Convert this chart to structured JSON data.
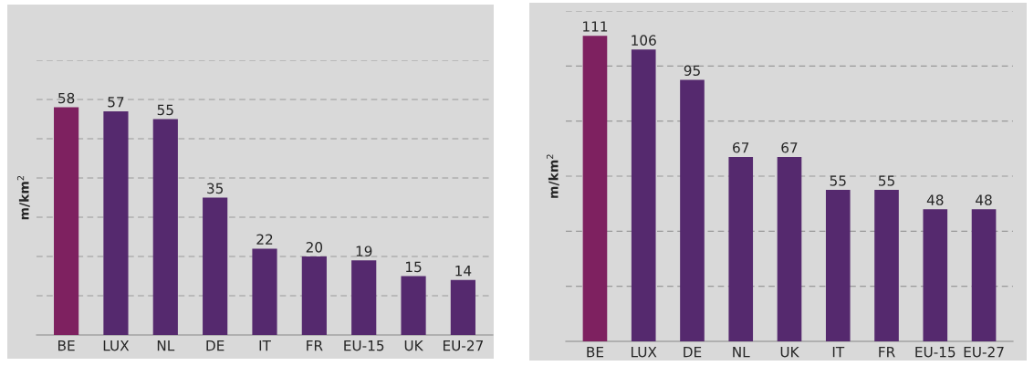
{
  "chart_data": [
    {
      "type": "bar",
      "ylabel": "m/km$^{2}$",
      "categories": [
        "BE",
        "LUX",
        "NL",
        "DE",
        "IT",
        "FR",
        "EU-15",
        "UK",
        "EU-27"
      ],
      "values": [
        58,
        57,
        55,
        35,
        22,
        20,
        19,
        15,
        14
      ],
      "colors": [
        "#7e2160",
        "#55296e",
        "#55296e",
        "#55296e",
        "#55296e",
        "#55296e",
        "#55296e",
        "#55296e",
        "#55296e"
      ],
      "ylim": [
        0,
        70
      ],
      "yticks": [
        {
          "value": 10,
          "label": null
        },
        {
          "value": 20,
          "label": null
        },
        {
          "value": 30,
          "label": null
        },
        {
          "value": 40,
          "label": null
        },
        {
          "value": 50,
          "label": null
        },
        {
          "value": 60,
          "label": null
        },
        {
          "value": 70,
          "label": null
        }
      ],
      "grid": "y",
      "tick_labels": "x",
      "data_labels": true
    },
    {
      "type": "bar",
      "ylabel": "m/km$^{2}$",
      "categories": [
        "BE",
        "LUX",
        "DE",
        "NL",
        "UK",
        "IT",
        "FR",
        "EU-15",
        "EU-27"
      ],
      "values": [
        111,
        106,
        95,
        67,
        67,
        55,
        55,
        48,
        48
      ],
      "colors": [
        "#7e2160",
        "#55296e",
        "#55296e",
        "#55296e",
        "#55296e",
        "#55296e",
        "#55296e",
        "#55296e",
        "#55296e"
      ],
      "ylim": [
        0,
        120
      ],
      "yticks": [
        {
          "value": 20,
          "label": null
        },
        {
          "value": 40,
          "label": null
        },
        {
          "value": 60,
          "label": null
        },
        {
          "value": 80,
          "label": null
        },
        {
          "value": 100,
          "label": null
        },
        {
          "value": 120,
          "label": null
        }
      ],
      "grid": "y",
      "tick_labels": "x",
      "data_labels": true
    }
  ]
}
